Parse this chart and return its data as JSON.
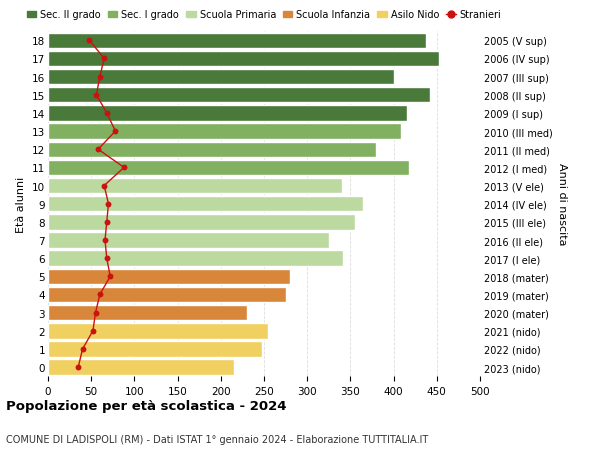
{
  "ages": [
    18,
    17,
    16,
    15,
    14,
    13,
    12,
    11,
    10,
    9,
    8,
    7,
    6,
    5,
    4,
    3,
    2,
    1,
    0
  ],
  "bar_values": [
    438,
    452,
    400,
    442,
    415,
    408,
    380,
    418,
    340,
    365,
    355,
    325,
    342,
    280,
    275,
    230,
    255,
    248,
    215
  ],
  "bar_colors": [
    "#4a7a3a",
    "#4a7a3a",
    "#4a7a3a",
    "#4a7a3a",
    "#4a7a3a",
    "#80b060",
    "#80b060",
    "#80b060",
    "#bcd9a0",
    "#bcd9a0",
    "#bcd9a0",
    "#bcd9a0",
    "#bcd9a0",
    "#d8873a",
    "#d8873a",
    "#d8873a",
    "#f0d060",
    "#f0d060",
    "#f0d060"
  ],
  "stranieri_values": [
    48,
    65,
    60,
    56,
    68,
    78,
    58,
    88,
    65,
    70,
    68,
    66,
    68,
    72,
    60,
    55,
    52,
    40,
    35
  ],
  "right_labels": [
    "2005 (V sup)",
    "2006 (IV sup)",
    "2007 (III sup)",
    "2008 (II sup)",
    "2009 (I sup)",
    "2010 (III med)",
    "2011 (II med)",
    "2012 (I med)",
    "2013 (V ele)",
    "2014 (IV ele)",
    "2015 (III ele)",
    "2016 (II ele)",
    "2017 (I ele)",
    "2018 (mater)",
    "2019 (mater)",
    "2020 (mater)",
    "2021 (nido)",
    "2022 (nido)",
    "2023 (nido)"
  ],
  "legend_labels": [
    "Sec. II grado",
    "Sec. I grado",
    "Scuola Primaria",
    "Scuola Infanzia",
    "Asilo Nido",
    "Stranieri"
  ],
  "legend_colors": [
    "#4a7a3a",
    "#80b060",
    "#bcd9a0",
    "#d8873a",
    "#f0d060",
    "#cc1111"
  ],
  "ylabel_left": "Età alunni",
  "ylabel_right": "Anni di nascita",
  "title": "Popolazione per età scolastica - 2024",
  "subtitle": "COMUNE DI LADISPOLI (RM) - Dati ISTAT 1° gennaio 2024 - Elaborazione TUTTITALIA.IT",
  "xlim": [
    0,
    500
  ],
  "xticks": [
    0,
    50,
    100,
    150,
    200,
    250,
    300,
    350,
    400,
    450,
    500
  ],
  "bg_color": "#ffffff",
  "bar_edge_color": "#ffffff",
  "stranieri_color": "#cc1111",
  "grid_color": "#dddddd"
}
